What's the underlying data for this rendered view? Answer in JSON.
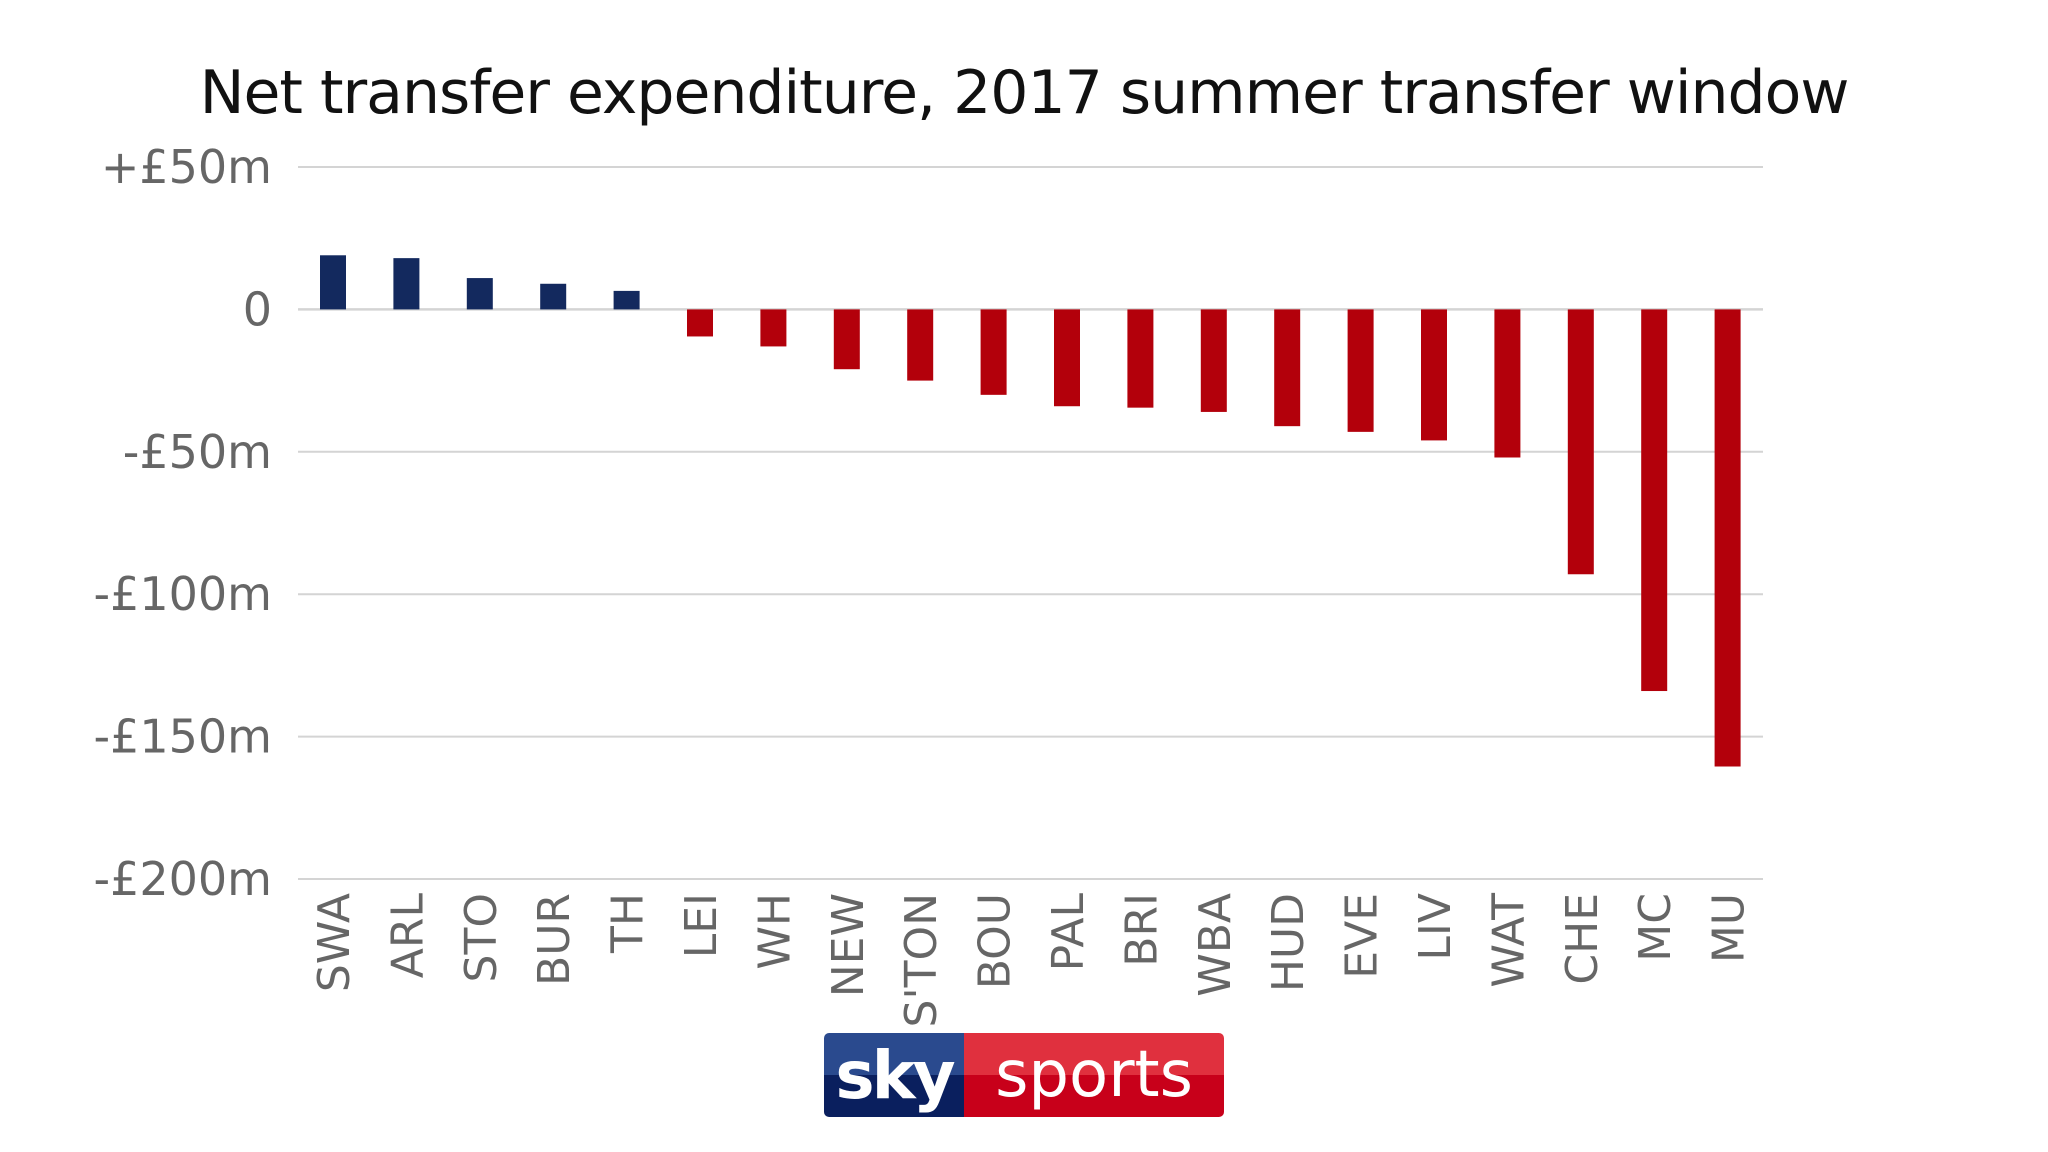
{
  "chart_data": {
    "type": "bar",
    "title": "Net transfer expenditure, 2017 summer transfer window",
    "xlabel": "",
    "ylabel": "",
    "ylim": [
      -200,
      50
    ],
    "yticks": [
      50,
      0,
      -50,
      -100,
      -150,
      -200
    ],
    "ytick_labels": [
      "+£50m",
      "0",
      "-£50m",
      "-£100m",
      "-£150m",
      "-£200m"
    ],
    "grid": true,
    "categories": [
      "SWA",
      "ARL",
      "STO",
      "BUR",
      "TH",
      "LEI",
      "WH",
      "NEW",
      "S'TON",
      "BOU",
      "PAL",
      "BRI",
      "WBA",
      "HUD",
      "EVE",
      "LIV",
      "WAT",
      "CHE",
      "MC",
      "MU"
    ],
    "values": [
      19,
      18,
      11,
      9,
      6.5,
      -9.5,
      -13,
      -21,
      -25,
      -30,
      -34,
      -34.5,
      -36,
      -41,
      -43,
      -46,
      -52,
      -93,
      -134,
      -160.5
    ],
    "colors": {
      "positive": "#13295e",
      "negative": "#b3000b",
      "grid": "#d4d4d4"
    }
  },
  "logo": {
    "part1": "sky",
    "part2": "sports"
  }
}
